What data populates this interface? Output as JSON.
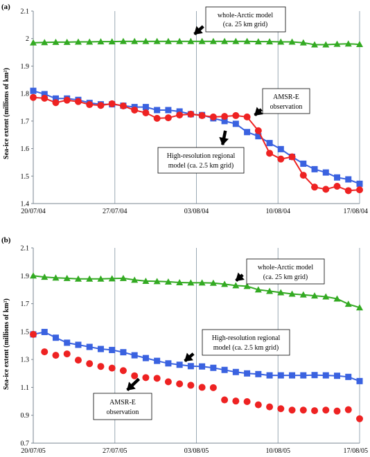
{
  "chart_data": [
    {
      "type": "line",
      "panel_label": "(a)",
      "ylabel": "Sea-ice extent (millions of km²)",
      "ylim": [
        1.4,
        2.1
      ],
      "yticks": [
        "1.4",
        "1.5",
        "1.6",
        "1.7",
        "1.8",
        "1.9",
        "2",
        "2.1"
      ],
      "x_start": "20/07/04",
      "x_end": "17/08/04",
      "xticks": [
        "20/07/04",
        "27/07/04",
        "03/08/04",
        "10/08/04",
        "17/08/04"
      ],
      "grid": "vertical-lines-only",
      "series": [
        {
          "color": "#33aa22",
          "marker": "triangle",
          "values": [
            1.985,
            1.986,
            1.987,
            1.987,
            1.988,
            1.988,
            1.989,
            1.989,
            1.99,
            1.99,
            1.99,
            1.99,
            1.99,
            1.99,
            1.99,
            1.99,
            1.99,
            1.99,
            1.99,
            1.99,
            1.989,
            1.989,
            1.988,
            1.988,
            1.985,
            1.978,
            1.978,
            1.98,
            1.981,
            1.979
          ]
        },
        {
          "color": "#3a62e0",
          "marker": "square",
          "values": [
            1.81,
            1.798,
            1.782,
            1.782,
            1.777,
            1.766,
            1.761,
            1.761,
            1.756,
            1.751,
            1.751,
            1.74,
            1.74,
            1.735,
            1.725,
            1.722,
            1.71,
            1.7,
            1.69,
            1.66,
            1.645,
            1.62,
            1.598,
            1.57,
            1.545,
            1.525,
            1.513,
            1.495,
            1.488,
            1.472
          ]
        },
        {
          "color": "#ee2222",
          "marker": "circle",
          "values": [
            1.786,
            1.783,
            1.767,
            1.776,
            1.771,
            1.76,
            1.757,
            1.763,
            1.755,
            1.74,
            1.73,
            1.71,
            1.712,
            1.722,
            1.725,
            1.72,
            1.715,
            1.717,
            1.72,
            1.715,
            1.665,
            1.583,
            1.562,
            1.57,
            1.503,
            1.46,
            1.452,
            1.463,
            1.447,
            1.45
          ]
        }
      ],
      "annotations": [
        {
          "lines": [
            "whole-Arctic model",
            "(ca. 25 km grid)"
          ]
        },
        {
          "lines": [
            "AMSR-E",
            "observation"
          ]
        },
        {
          "lines": [
            "High-resolution regional",
            "model (ca. 2.5 km grid)"
          ]
        }
      ]
    },
    {
      "type": "line",
      "panel_label": "(b)",
      "ylabel": "Sea-ice extent (millions of km²)",
      "ylim": [
        0.7,
        2.1
      ],
      "yticks": [
        "0.7",
        "0.9",
        "1.1",
        "1.3",
        "1.5",
        "1.7",
        "1.9",
        "2.1"
      ],
      "x_start": "20/07/05",
      "x_end": "17/08/05",
      "xticks": [
        "20/07/05",
        "27/07/05",
        "03/08/05",
        "10/08/05",
        "17/08/05"
      ],
      "grid": "vertical-lines-only",
      "series": [
        {
          "color": "#33aa22",
          "marker": "triangle",
          "values": [
            1.9,
            1.891,
            1.885,
            1.882,
            1.878,
            1.878,
            1.878,
            1.88,
            1.882,
            1.87,
            1.862,
            1.86,
            1.857,
            1.852,
            1.85,
            1.85,
            1.848,
            1.84,
            1.83,
            1.825,
            1.8,
            1.79,
            1.78,
            1.77,
            1.764,
            1.757,
            1.75,
            1.735,
            1.697,
            1.672
          ]
        },
        {
          "color": "#3a62e0",
          "marker": "square",
          "values": [
            1.48,
            1.497,
            1.456,
            1.42,
            1.405,
            1.39,
            1.375,
            1.368,
            1.352,
            1.33,
            1.31,
            1.29,
            1.272,
            1.262,
            1.252,
            1.25,
            1.24,
            1.225,
            1.21,
            1.2,
            1.195,
            1.186,
            1.186,
            1.186,
            1.186,
            1.188,
            1.186,
            1.183,
            1.175,
            1.145
          ]
        },
        {
          "color": "#ee2222",
          "marker": "circle",
          "values": [
            1.48,
            1.355,
            1.33,
            1.34,
            1.295,
            1.27,
            1.25,
            1.238,
            1.22,
            1.183,
            1.17,
            1.165,
            1.14,
            1.125,
            1.115,
            1.1,
            1.098,
            1.01,
            1.002,
            0.998,
            0.975,
            0.96,
            0.947,
            0.937,
            0.937,
            0.933,
            0.937,
            0.93,
            0.94,
            0.875
          ]
        }
      ],
      "annotations": [
        {
          "lines": [
            "whole-Arctic model",
            "(ca. 25 km grid)"
          ]
        },
        {
          "lines": [
            "High-resolution regional",
            "model (ca. 2.5 km grid)"
          ]
        },
        {
          "lines": [
            "AMSR-E",
            "observation"
          ]
        }
      ]
    }
  ]
}
